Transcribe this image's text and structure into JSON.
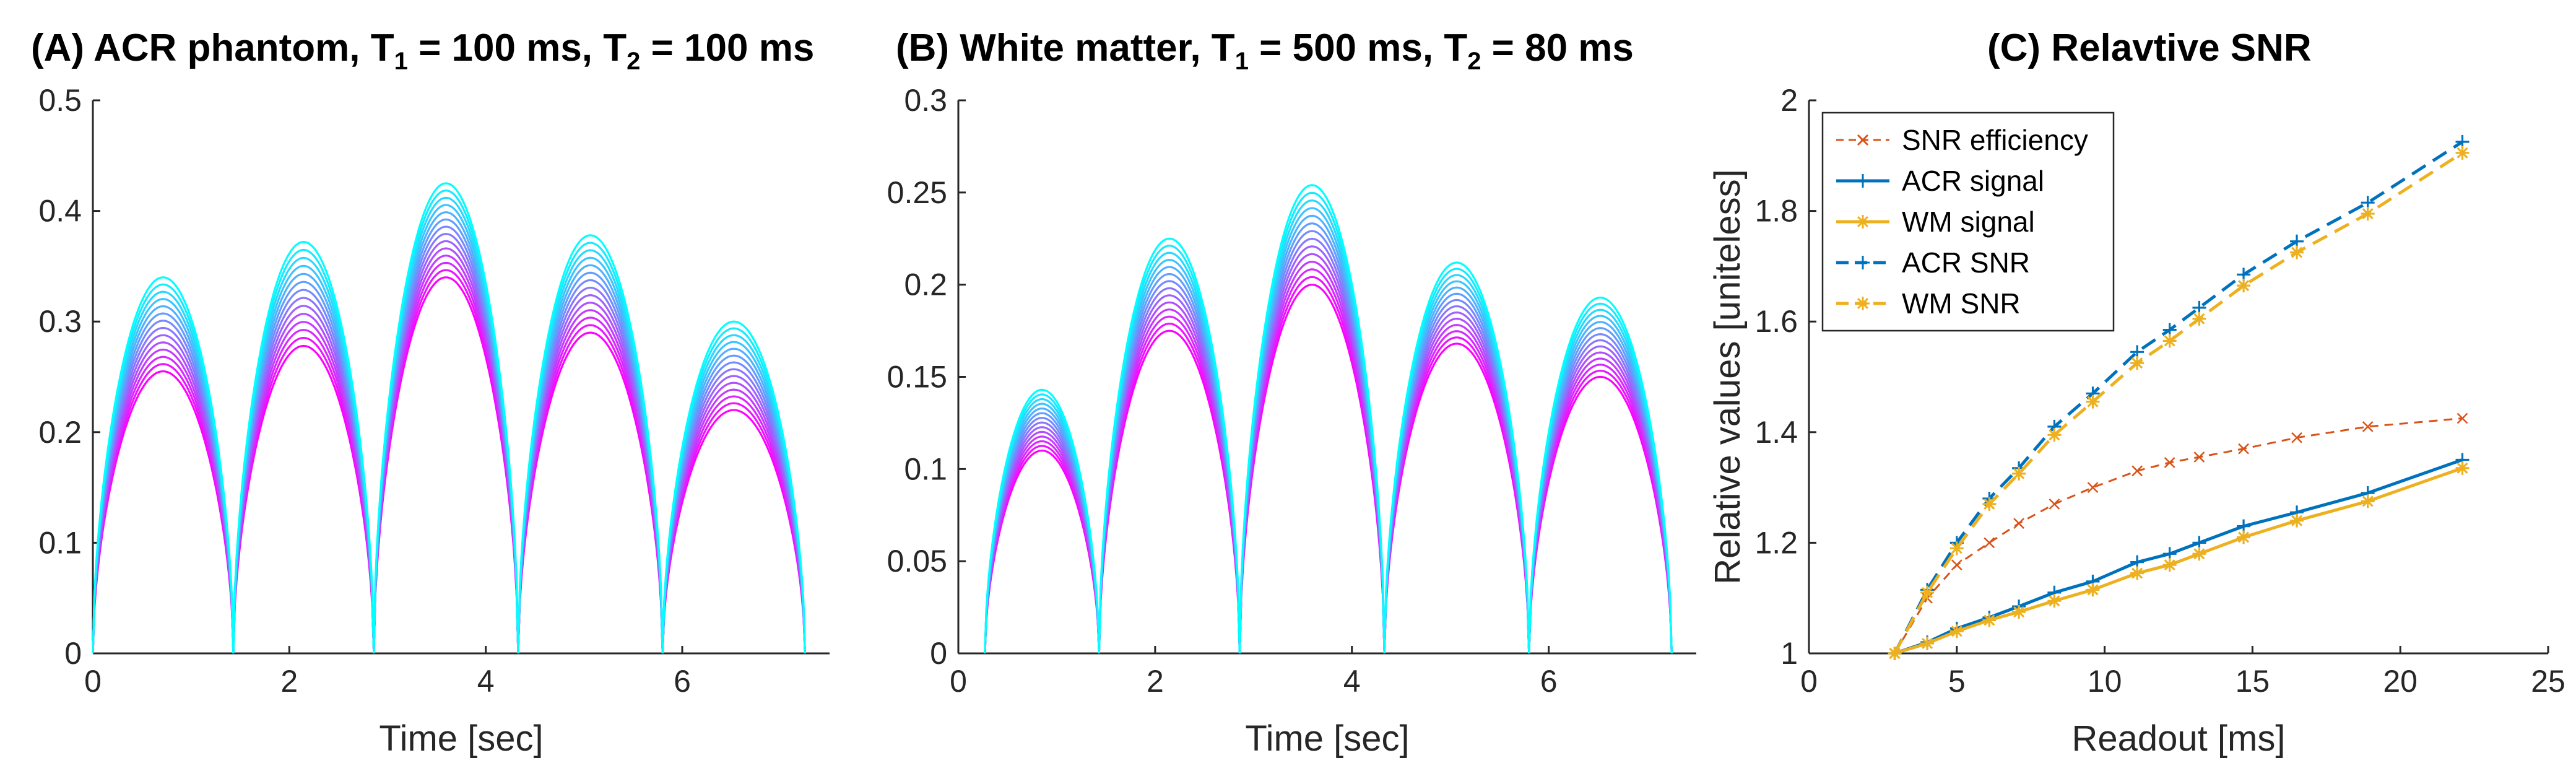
{
  "chart_data": [
    {
      "id": "A",
      "type": "line",
      "title": {
        "prefix": "(A) ACR phantom, T",
        "sub1": "1",
        "mid": " = 100 ms, T",
        "sub2": "2",
        "suffix": " = 100 ms"
      },
      "xlabel": "Time [sec]",
      "ylabel": "",
      "xlim": [
        0,
        7.5
      ],
      "ylim": [
        0,
        0.5
      ],
      "xticks": [
        0,
        2,
        4,
        6
      ],
      "yticks": [
        0,
        0.1,
        0.2,
        0.3,
        0.4,
        0.5
      ],
      "ytick_labels": [
        "0",
        "0.1",
        "0.2",
        "0.3",
        "0.4",
        "0.5"
      ],
      "grid": false,
      "color_gradient": [
        "#ff00ff",
        "#00ffff"
      ],
      "n_curves": 14,
      "pulses": [
        {
          "t0": 0.0,
          "t1": 1.43,
          "peak_min": 0.255,
          "peak_max": 0.34
        },
        {
          "t0": 1.43,
          "t1": 2.86,
          "peak_min": 0.278,
          "peak_max": 0.372
        },
        {
          "t0": 2.86,
          "t1": 4.33,
          "peak_min": 0.34,
          "peak_max": 0.425
        },
        {
          "t0": 4.33,
          "t1": 5.8,
          "peak_min": 0.29,
          "peak_max": 0.378
        },
        {
          "t0": 5.8,
          "t1": 7.25,
          "peak_min": 0.22,
          "peak_max": 0.3
        }
      ]
    },
    {
      "id": "B",
      "type": "line",
      "title": {
        "prefix": "(B) White matter, T",
        "sub1": "1",
        "mid": " = 500 ms, T",
        "sub2": "2",
        "suffix": " = 80 ms"
      },
      "xlabel": "Time [sec]",
      "ylabel": "",
      "xlim": [
        0,
        7.5
      ],
      "ylim": [
        0,
        0.3
      ],
      "xticks": [
        0,
        2,
        4,
        6
      ],
      "yticks": [
        0,
        0.05,
        0.1,
        0.15,
        0.2,
        0.25,
        0.3
      ],
      "ytick_labels": [
        "0",
        "0.05",
        "0.1",
        "0.15",
        "0.2",
        "0.25",
        "0.3"
      ],
      "grid": false,
      "color_gradient": [
        "#ff00ff",
        "#00ffff"
      ],
      "n_curves": 14,
      "pulses": [
        {
          "t0": 0.27,
          "t1": 1.43,
          "peak_min": 0.11,
          "peak_max": 0.143
        },
        {
          "t0": 1.43,
          "t1": 2.86,
          "peak_min": 0.175,
          "peak_max": 0.225
        },
        {
          "t0": 2.86,
          "t1": 4.33,
          "peak_min": 0.2,
          "peak_max": 0.254
        },
        {
          "t0": 4.33,
          "t1": 5.8,
          "peak_min": 0.168,
          "peak_max": 0.212
        },
        {
          "t0": 5.8,
          "t1": 7.25,
          "peak_min": 0.15,
          "peak_max": 0.193
        }
      ]
    },
    {
      "id": "C",
      "type": "line",
      "title": {
        "prefix": "(C) Relavtive SNR",
        "sub1": "",
        "mid": "",
        "sub2": "",
        "suffix": ""
      },
      "xlabel": "Readout [ms]",
      "ylabel": "Relative values [uniteless]",
      "xlim": [
        0,
        25
      ],
      "ylim": [
        1,
        2
      ],
      "xticks": [
        0,
        5,
        10,
        15,
        20,
        25
      ],
      "yticks": [
        1,
        1.2,
        1.4,
        1.6,
        1.8,
        2
      ],
      "ytick_labels": [
        "1",
        "1.2",
        "1.4",
        "1.6",
        "1.8",
        "2"
      ],
      "grid": false,
      "legend_position": "top-left",
      "x": [
        2.9,
        4.0,
        5.0,
        6.1,
        7.1,
        8.3,
        9.6,
        11.1,
        12.2,
        13.2,
        14.7,
        16.5,
        18.9,
        22.1
      ],
      "series": [
        {
          "name": "SNR efficiency",
          "color": "#d95319",
          "dash": "dashed",
          "marker": "x",
          "values": [
            1.0,
            1.1,
            1.16,
            1.2,
            1.235,
            1.27,
            1.3,
            1.33,
            1.345,
            1.355,
            1.37,
            1.39,
            1.41,
            1.425
          ]
        },
        {
          "name": "ACR signal",
          "color": "#0072bd",
          "dash": "solid",
          "marker": "+",
          "values": [
            1.0,
            1.02,
            1.045,
            1.065,
            1.085,
            1.11,
            1.13,
            1.165,
            1.18,
            1.2,
            1.23,
            1.255,
            1.29,
            1.35
          ]
        },
        {
          "name": "WM signal",
          "color": "#edb120",
          "dash": "solid",
          "marker": "*",
          "values": [
            1.0,
            1.018,
            1.04,
            1.06,
            1.075,
            1.095,
            1.115,
            1.145,
            1.16,
            1.18,
            1.21,
            1.24,
            1.275,
            1.335
          ]
        },
        {
          "name": "ACR SNR",
          "color": "#0072bd",
          "dash": "dashed",
          "marker": "+",
          "values": [
            1.0,
            1.115,
            1.2,
            1.28,
            1.335,
            1.41,
            1.47,
            1.545,
            1.585,
            1.625,
            1.685,
            1.745,
            1.815,
            1.925
          ]
        },
        {
          "name": "WM SNR",
          "color": "#edb120",
          "dash": "dashed",
          "marker": "*",
          "values": [
            1.0,
            1.11,
            1.19,
            1.27,
            1.325,
            1.395,
            1.455,
            1.525,
            1.565,
            1.605,
            1.665,
            1.725,
            1.795,
            1.905
          ]
        }
      ]
    }
  ]
}
